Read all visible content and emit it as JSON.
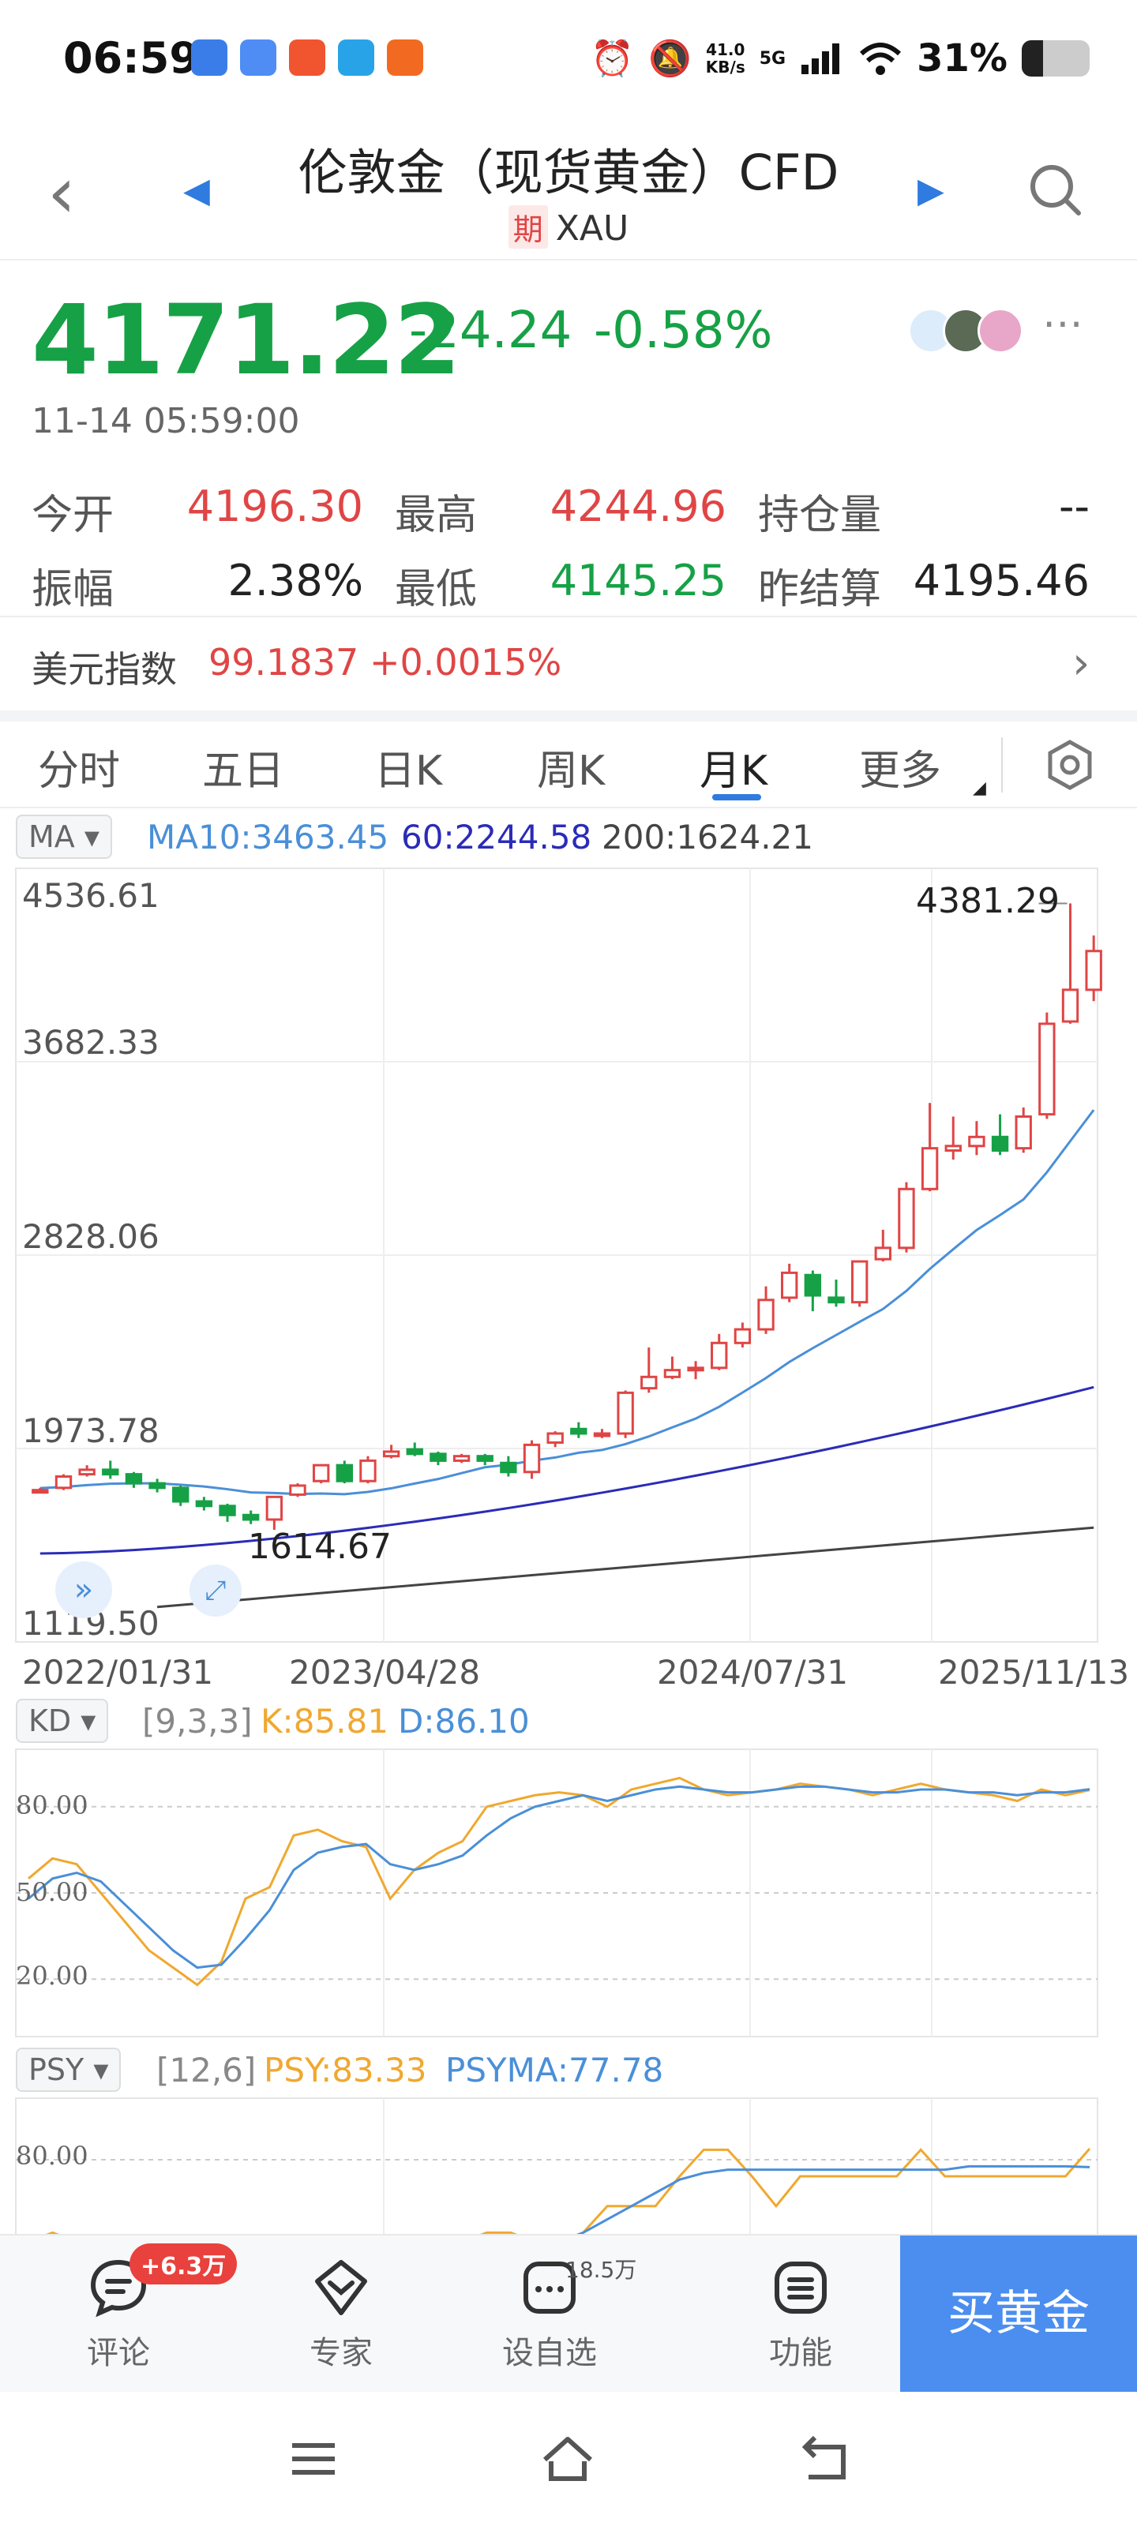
{
  "status_bar": {
    "time": "06:59",
    "net_speed_value": "41.0",
    "net_speed_unit": "KB/s",
    "network_type": "5G",
    "battery_percent": "31%",
    "battery_level": 0.31
  },
  "header": {
    "title": "伦敦金（现货黄金）CFD",
    "badge": "期",
    "symbol": "XAU"
  },
  "quote": {
    "price": "4171.22",
    "change": "-24.24",
    "change_pct": "-0.58%",
    "timestamp": "11-14 05:59:00"
  },
  "stats": [
    {
      "label": "今开",
      "value": "4196.30",
      "color": "red"
    },
    {
      "label": "最高",
      "value": "4244.96",
      "color": "red"
    },
    {
      "label": "持仓量",
      "value": "--",
      "color": "dark"
    },
    {
      "label": "振幅",
      "value": "2.38%",
      "color": "dark"
    },
    {
      "label": "最低",
      "value": "4145.25",
      "color": "green"
    },
    {
      "label": "昨结算",
      "value": "4195.46",
      "color": "dark"
    }
  ],
  "usd_index": {
    "label": "美元指数",
    "value": "99.1837",
    "change": "+0.0015%"
  },
  "tabs": [
    "分时",
    "五日",
    "日K",
    "周K",
    "月K",
    "更多"
  ],
  "active_tab": "月K",
  "main_panel": {
    "selector": "MA",
    "ma10": "MA10:3463.45",
    "ma60": "60:2244.58",
    "ma200": "200:1624.21",
    "y_ticks": [
      "4536.61",
      "3682.33",
      "2828.06",
      "1973.78",
      "1119.50"
    ],
    "x_ticks": [
      "2022/01/31",
      "2023/04/28",
      "2024/07/31",
      "2025/11/13"
    ],
    "max_label": "4381.29",
    "min_label": "1614.67"
  },
  "kd_panel": {
    "selector": "KD",
    "params": "[9,3,3]",
    "k": "K:85.81",
    "d": "D:86.10",
    "y_ticks": [
      "80.00",
      "50.00",
      "20.00"
    ]
  },
  "psy_panel": {
    "selector": "PSY",
    "params": "[12,6]",
    "psy": "PSY:83.33",
    "psyma": "PSYMA:77.78",
    "y_ticks": [
      "80.00"
    ]
  },
  "colors": {
    "up": "#e04545",
    "down": "#16a146",
    "accent": "#2f7be0",
    "ma10": "#4a8fd8",
    "ma60": "#2b2bb8",
    "ma200": "#444444",
    "k_line": "#f0a830",
    "d_line": "#4a8fd8"
  },
  "chart_data": {
    "type": "candlestick",
    "xlabel": "",
    "ylabel": "",
    "ylim": [
      1119.5,
      4536.61
    ],
    "ohlc": [
      [
        1790,
        1800,
        1780,
        1790
      ],
      [
        1800,
        1860,
        1790,
        1850
      ],
      [
        1860,
        1900,
        1850,
        1880
      ],
      [
        1880,
        1920,
        1840,
        1860
      ],
      [
        1860,
        1870,
        1800,
        1820
      ],
      [
        1820,
        1840,
        1780,
        1800
      ],
      [
        1800,
        1810,
        1720,
        1740
      ],
      [
        1740,
        1760,
        1700,
        1720
      ],
      [
        1720,
        1730,
        1650,
        1680
      ],
      [
        1680,
        1700,
        1640,
        1660
      ],
      [
        1660,
        1760,
        1614.67,
        1760
      ],
      [
        1770,
        1820,
        1760,
        1810
      ],
      [
        1830,
        1900,
        1820,
        1900
      ],
      [
        1900,
        1920,
        1820,
        1830
      ],
      [
        1830,
        1940,
        1820,
        1920
      ],
      [
        1940,
        1990,
        1930,
        1960
      ],
      [
        1970,
        2000,
        1940,
        1950
      ],
      [
        1950,
        1960,
        1900,
        1920
      ],
      [
        1920,
        1950,
        1910,
        1940
      ],
      [
        1940,
        1950,
        1900,
        1920
      ],
      [
        1910,
        1940,
        1850,
        1870
      ],
      [
        1870,
        2010,
        1840,
        1990
      ],
      [
        2000,
        2050,
        1980,
        2040
      ],
      [
        2060,
        2090,
        2020,
        2040
      ],
      [
        2040,
        2060,
        2020,
        2040
      ],
      [
        2040,
        2230,
        2020,
        2220
      ],
      [
        2240,
        2420,
        2220,
        2290
      ],
      [
        2290,
        2380,
        2280,
        2320
      ],
      [
        2320,
        2360,
        2280,
        2330
      ],
      [
        2330,
        2480,
        2320,
        2440
      ],
      [
        2440,
        2530,
        2420,
        2500
      ],
      [
        2500,
        2690,
        2480,
        2630
      ],
      [
        2640,
        2790,
        2620,
        2750
      ],
      [
        2740,
        2760,
        2580,
        2650
      ],
      [
        2640,
        2720,
        2600,
        2620
      ],
      [
        2620,
        2800,
        2600,
        2800
      ],
      [
        2810,
        2940,
        2800,
        2860
      ],
      [
        2860,
        3150,
        2840,
        3120
      ],
      [
        3120,
        3500,
        3110,
        3300
      ],
      [
        3290,
        3440,
        3250,
        3310
      ],
      [
        3310,
        3420,
        3270,
        3350
      ],
      [
        3350,
        3450,
        3270,
        3290
      ],
      [
        3300,
        3480,
        3280,
        3440
      ],
      [
        3450,
        3900,
        3430,
        3850
      ],
      [
        3860,
        4381.29,
        3850,
        4000
      ],
      [
        4000,
        4240,
        3950,
        4171.22
      ]
    ],
    "ma10_last": 3463.45,
    "ma60_last": 2244.58,
    "ma200_last": 1624.21,
    "kd": {
      "k_last": 85.81,
      "d_last": 86.1,
      "ylim": [
        0,
        100
      ]
    },
    "psy": {
      "psy_last": 83.33,
      "psyma_last": 77.78
    }
  },
  "bottom_bar": {
    "comments_label": "评论",
    "comments_badge": "+6.3万",
    "expert_label": "专家",
    "watch_label": "设自选",
    "watch_count": "18.5万",
    "function_label": "功能",
    "buy_label": "买黄金"
  }
}
